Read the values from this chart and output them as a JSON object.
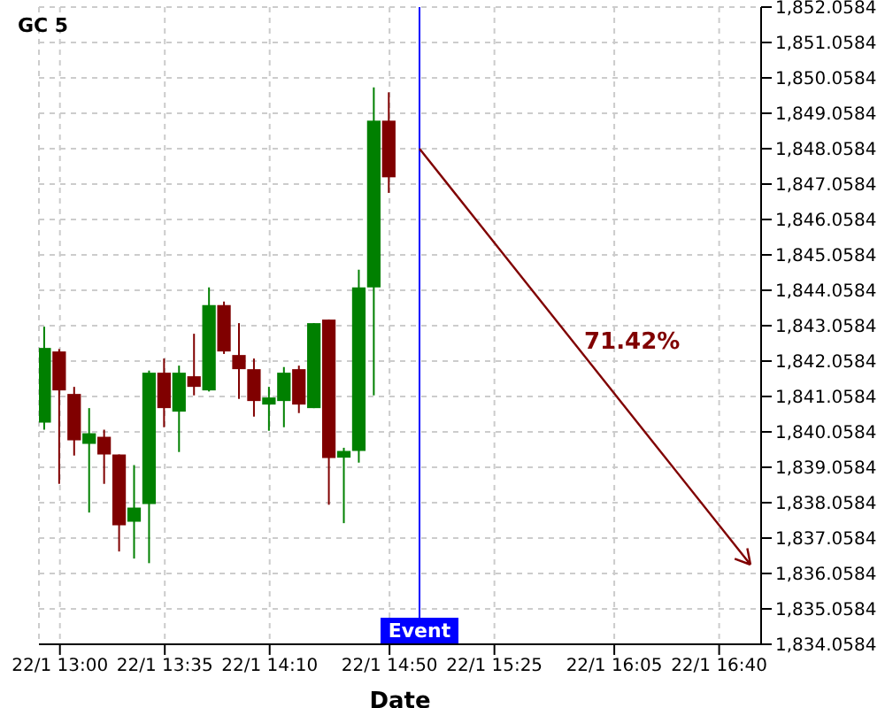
{
  "chart_data": {
    "type": "candlestick",
    "title": "GC 5",
    "xlabel": "Date",
    "x": [
      "--01-22T12:55",
      "--01-22T13:00",
      "--01-22T13:05",
      "--01-22T13:10",
      "--01-22T13:15",
      "--01-22T13:20",
      "--01-22T13:25",
      "--01-22T13:30",
      "--01-22T13:35",
      "--01-22T13:40",
      "--01-22T13:45",
      "--01-22T13:50",
      "--01-22T13:55",
      "--01-22T14:00",
      "--01-22T14:05",
      "--01-22T14:10",
      "--01-22T14:15",
      "--01-22T14:20",
      "--01-22T14:25",
      "--01-22T14:30",
      "--01-22T14:35",
      "--01-22T14:40",
      "--01-22T14:45",
      "--01-22T14:50"
    ],
    "ohlc": [
      [
        1840.32,
        1843.03,
        1840.12,
        1842.43
      ],
      [
        1842.33,
        1842.4,
        1838.59,
        1841.23
      ],
      [
        1841.13,
        1841.33,
        1839.39,
        1839.82
      ],
      [
        1839.72,
        1840.73,
        1837.78,
        1840.02
      ],
      [
        1839.92,
        1840.12,
        1838.59,
        1839.42
      ],
      [
        1839.42,
        1839.42,
        1836.68,
        1837.42
      ],
      [
        1837.52,
        1839.12,
        1836.48,
        1837.92
      ],
      [
        1838.02,
        1841.79,
        1836.35,
        1841.73
      ],
      [
        1841.73,
        1842.13,
        1840.19,
        1840.73
      ],
      [
        1840.63,
        1841.93,
        1839.49,
        1841.73
      ],
      [
        1841.63,
        1842.83,
        1841.09,
        1841.33
      ],
      [
        1841.23,
        1844.14,
        1841.2,
        1843.64
      ],
      [
        1843.64,
        1843.74,
        1842.26,
        1842.33
      ],
      [
        1842.23,
        1843.13,
        1840.99,
        1841.83
      ],
      [
        1841.83,
        1842.13,
        1840.49,
        1840.93
      ],
      [
        1840.83,
        1841.33,
        1840.09,
        1841.03
      ],
      [
        1840.93,
        1841.89,
        1840.19,
        1841.73
      ],
      [
        1841.83,
        1841.93,
        1840.59,
        1840.83
      ],
      [
        1840.73,
        1843.13,
        1840.73,
        1843.13
      ],
      [
        1843.23,
        1843.23,
        1838.0,
        1839.32
      ],
      [
        1839.33,
        1839.61,
        1837.48,
        1839.52
      ],
      [
        1839.52,
        1844.64,
        1839.19,
        1844.14
      ],
      [
        1844.14,
        1849.79,
        1841.09,
        1848.85
      ],
      [
        1848.85,
        1849.65,
        1846.81,
        1847.25
      ]
    ],
    "colors": [
      "#008000",
      "#800000",
      "#800000",
      "#008000",
      "#800000",
      "#800000",
      "#008000",
      "#008000",
      "#800000",
      "#008000",
      "#800000",
      "#008000",
      "#800000",
      "#800000",
      "#800000",
      "#008000",
      "#008000",
      "#800000",
      "#008000",
      "#800000",
      "#008000",
      "#008000",
      "#008000",
      "#800000"
    ],
    "ref_lines": [
      {
        "axis": "x",
        "value": "--01-22T15:00",
        "label": "Event",
        "color": "#0000ff"
      }
    ],
    "annotations": [
      "71.42%"
    ],
    "xlim": [
      "--01-22T12:53",
      "--01-22T16:54"
    ],
    "xticks": [
      {
        "value": "--01-22T13:00",
        "label": "22/1 13:00"
      },
      {
        "value": "--01-22T13:35",
        "label": "22/1 13:35"
      },
      {
        "value": "--01-22T14:10",
        "label": "22/1 14:10"
      },
      {
        "value": "--01-22T14:50",
        "label": "22/1 14:50"
      },
      {
        "value": "--01-22T15:25",
        "label": "22/1 15:25"
      },
      {
        "value": "--01-22T16:05",
        "label": "22/1 16:05"
      },
      {
        "value": "--01-22T16:40",
        "label": "22/1 16:40"
      }
    ],
    "ylim": [
      1834.0584,
      1852.0584
    ],
    "yticks": [
      {
        "value": 1834.0584,
        "label": "1,834.0584"
      },
      {
        "value": 1835.0584,
        "label": "1,835.0584"
      },
      {
        "value": 1836.0584,
        "label": "1,836.0584"
      },
      {
        "value": 1837.0584,
        "label": "1,837.0584"
      },
      {
        "value": 1838.0584,
        "label": "1,838.0584"
      },
      {
        "value": 1839.0584,
        "label": "1,839.0584"
      },
      {
        "value": 1840.0584,
        "label": "1,840.0584"
      },
      {
        "value": 1841.0584,
        "label": "1,841.0584"
      },
      {
        "value": 1842.0584,
        "label": "1,842.0584"
      },
      {
        "value": 1843.0584,
        "label": "1,843.0584"
      },
      {
        "value": 1844.0584,
        "label": "1,844.0584"
      },
      {
        "value": 1845.0584,
        "label": "1,845.0584"
      },
      {
        "value": 1846.0584,
        "label": "1,846.0584"
      },
      {
        "value": 1847.0584,
        "label": "1,847.0584"
      },
      {
        "value": 1848.0584,
        "label": "1,848.0584"
      },
      {
        "value": 1849.0584,
        "label": "1,849.0584"
      },
      {
        "value": 1850.0584,
        "label": "1,850.0584"
      },
      {
        "value": 1851.0584,
        "label": "1,851.0584"
      },
      {
        "value": 1852.0584,
        "label": "1,852.0584"
      }
    ],
    "grid": true
  }
}
